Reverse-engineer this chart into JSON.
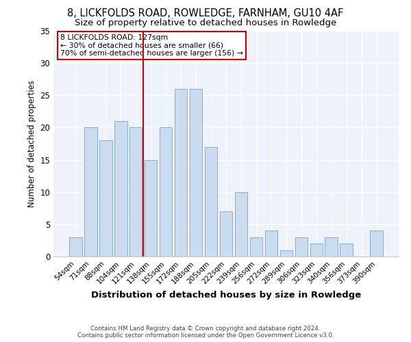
{
  "title1": "8, LICKFOLDS ROAD, ROWLEDGE, FARNHAM, GU10 4AF",
  "title2": "Size of property relative to detached houses in Rowledge",
  "xlabel": "Distribution of detached houses by size in Rowledge",
  "ylabel": "Number of detached properties",
  "bins": [
    "54sqm",
    "71sqm",
    "88sqm",
    "104sqm",
    "121sqm",
    "138sqm",
    "155sqm",
    "172sqm",
    "188sqm",
    "205sqm",
    "222sqm",
    "239sqm",
    "256sqm",
    "272sqm",
    "289sqm",
    "306sqm",
    "323sqm",
    "340sqm",
    "356sqm",
    "373sqm",
    "390sqm"
  ],
  "values": [
    3,
    20,
    18,
    21,
    20,
    15,
    20,
    26,
    26,
    17,
    7,
    10,
    3,
    4,
    1,
    3,
    2,
    3,
    2,
    0,
    4
  ],
  "bar_color": "#c9dcf0",
  "bar_edge_color": "#7aafda",
  "vline_x": 4.5,
  "vline_color": "#cc0000",
  "annotation_line1": "8 LICKFOLDS ROAD: 127sqm",
  "annotation_line2": "← 30% of detached houses are smaller (66)",
  "annotation_line3": "70% of semi-detached houses are larger (156) →",
  "annotation_box_color": "#ffffff",
  "annotation_box_edge": "#cc0000",
  "ylim": [
    0,
    35
  ],
  "yticks": [
    0,
    5,
    10,
    15,
    20,
    25,
    30,
    35
  ],
  "footer1": "Contains HM Land Registry data © Crown copyright and database right 2024.",
  "footer2": "Contains public sector information licensed under the Open Government Licence v3.0.",
  "bg_color": "#eef2fa",
  "title1_fontsize": 10.5,
  "title2_fontsize": 9.5,
  "xlabel_fontsize": 9.5,
  "ylabel_fontsize": 8.5,
  "bar_width": 0.85
}
